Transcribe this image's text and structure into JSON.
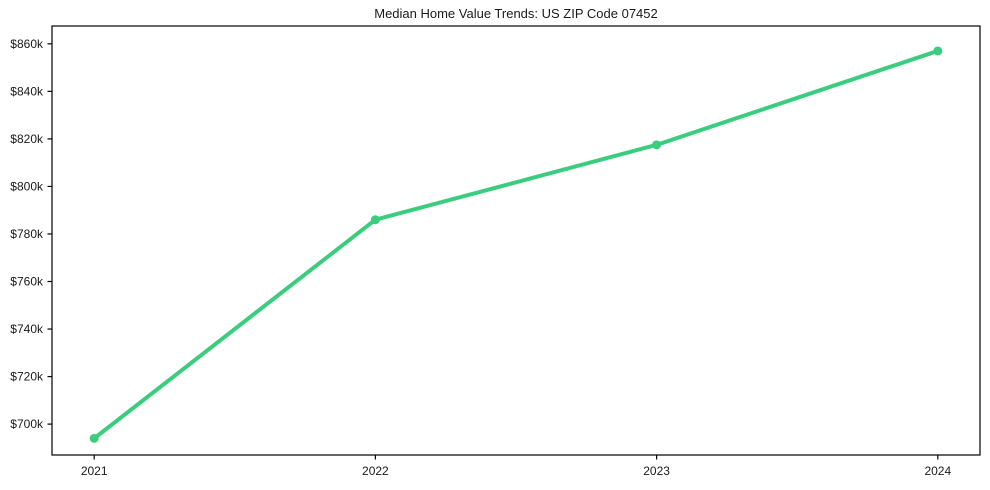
{
  "figure": {
    "background_color": "#ffffff",
    "text_color": "#1a1a1a",
    "spine_color": "#000000"
  },
  "chart_data": {
    "type": "line",
    "title": "Median Home Value Trends: US ZIP Code 07452",
    "xlabel": "",
    "ylabel": "",
    "x": [
      2021,
      2022,
      2023,
      2024
    ],
    "series": [
      {
        "name": "Median Home Value",
        "values": [
          694000,
          786000,
          817500,
          857000
        ],
        "color": "#3acd7e",
        "line_width": 4,
        "marker": "circle",
        "marker_radius": 4.5
      }
    ],
    "xlim": [
      2020.85,
      2024.15
    ],
    "ylim": [
      687000,
      867500
    ],
    "xticks": [
      2021,
      2022,
      2023,
      2024
    ],
    "xtick_labels": [
      "2021",
      "2022",
      "2023",
      "2024"
    ],
    "yticks": [
      700000,
      720000,
      740000,
      760000,
      780000,
      800000,
      820000,
      840000,
      860000
    ],
    "ytick_labels": [
      "$700k",
      "$720k",
      "$740k",
      "$760k",
      "$780k",
      "$800k",
      "$820k",
      "$840k",
      "$860k"
    ],
    "grid": false,
    "legend": "none"
  }
}
